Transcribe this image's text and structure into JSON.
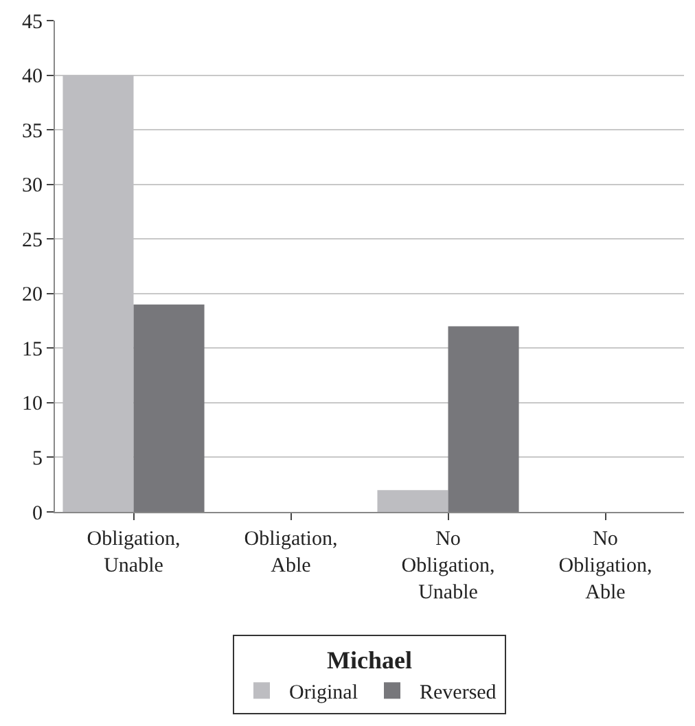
{
  "chart_data": {
    "type": "bar",
    "categories": [
      "Obligation, Unable",
      "Obligation, Able",
      "No Obligation, Unable",
      "No Obligation, Able"
    ],
    "series": [
      {
        "name": "Original",
        "color": "#bdbdc1",
        "values": [
          40,
          0,
          2,
          0
        ]
      },
      {
        "name": "Reversed",
        "color": "#77777b",
        "values": [
          19,
          0,
          17,
          0
        ]
      }
    ],
    "legend_title": "Michael",
    "legend": "bottom",
    "ylim": [
      0,
      45
    ],
    "yticks": [
      0,
      5,
      10,
      15,
      20,
      25,
      30,
      35,
      40,
      45
    ],
    "grid": "y"
  }
}
